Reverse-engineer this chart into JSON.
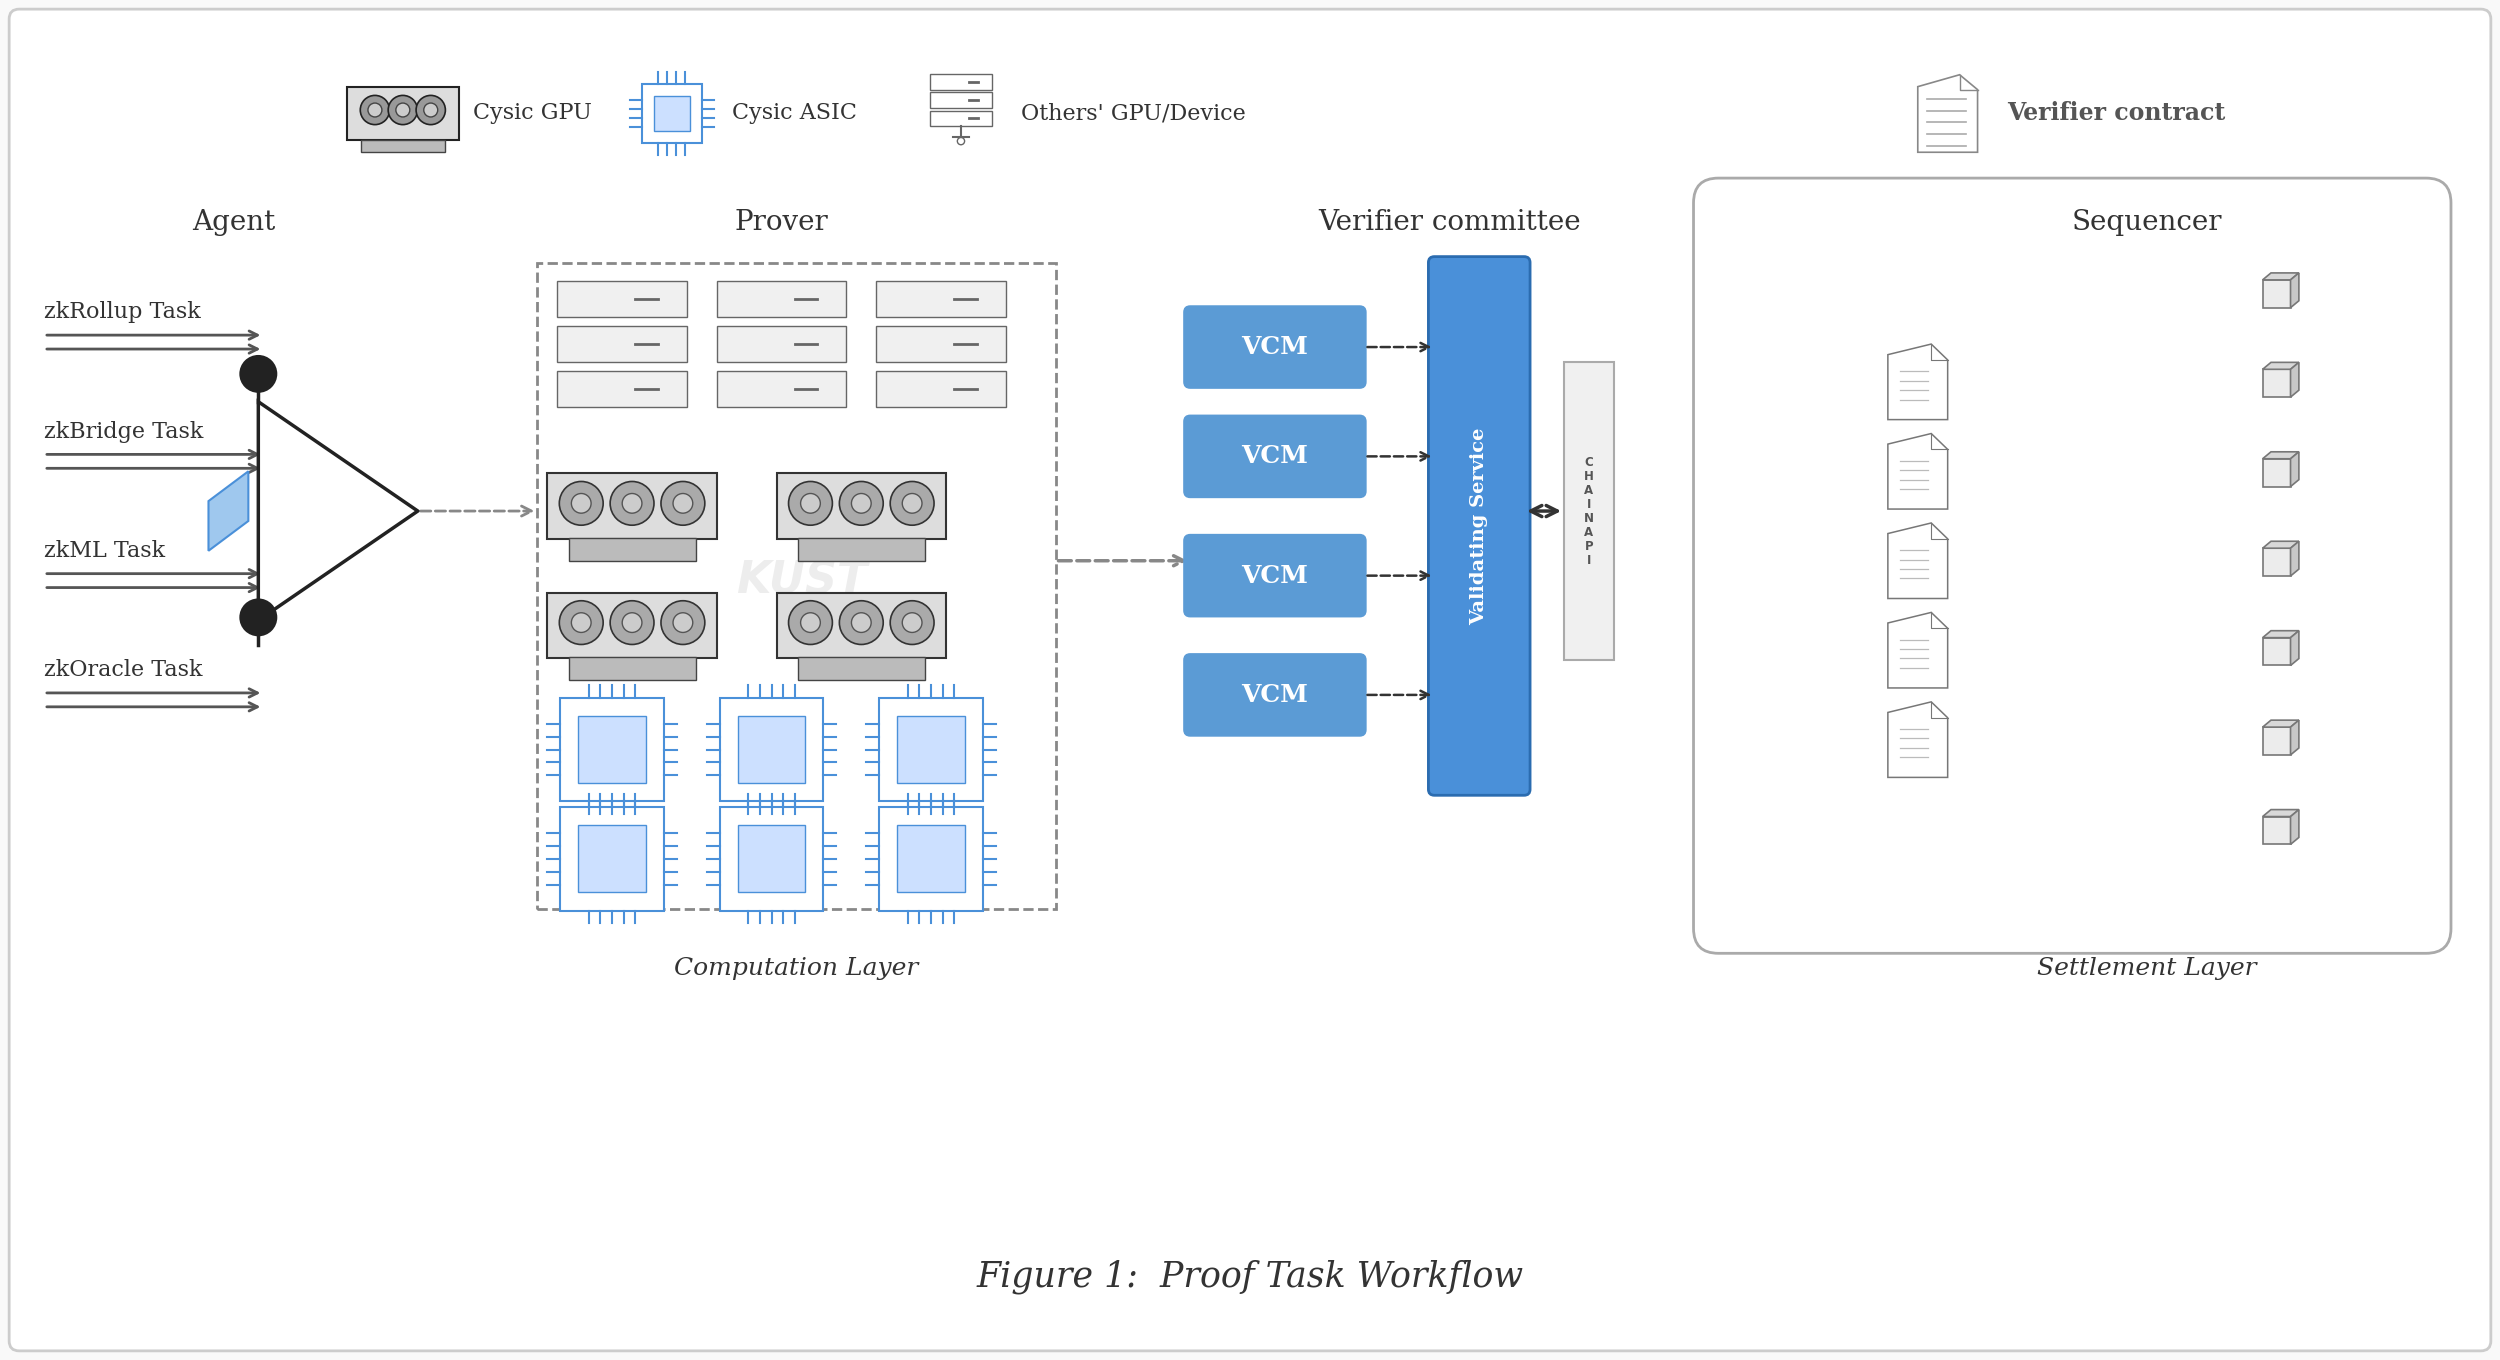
{
  "title": "Figure 1:  Proof Task Workflow",
  "bg_color": "#f9f9f9",
  "border_color": "#cccccc",
  "section_labels": [
    "Agent",
    "Prover",
    "Verifier committee",
    "Sequencer"
  ],
  "task_labels": [
    "zkRollup Task",
    "zkBridge Task",
    "zkML Task",
    "zkOracle Task"
  ],
  "vcm_labels": [
    "VCM",
    "VCM",
    "VCM",
    "VCM"
  ],
  "legend_items": [
    "Cysic GPU",
    "Cysic ASIC",
    "Others' GPU/Device",
    "Verifier contract"
  ],
  "validating_service_text": "Validating Service",
  "chain_api_text": "C\nH\nA\nI\nN\nA\nP\nI",
  "computation_layer_text": "Computation Layer",
  "settlement_layer_text": "Settlement Layer",
  "blue_color": "#4A90D9",
  "dark_blue": "#2B6CB0",
  "vcm_blue": "#5B9BD5",
  "text_color": "#333333",
  "light_gray": "#aaaaaa",
  "dashed_box_color": "#888888",
  "arrow_color": "#555555",
  "font_size_title": 22,
  "font_size_label": 18,
  "font_size_task": 16,
  "font_size_vcm": 16,
  "font_size_legend": 16
}
